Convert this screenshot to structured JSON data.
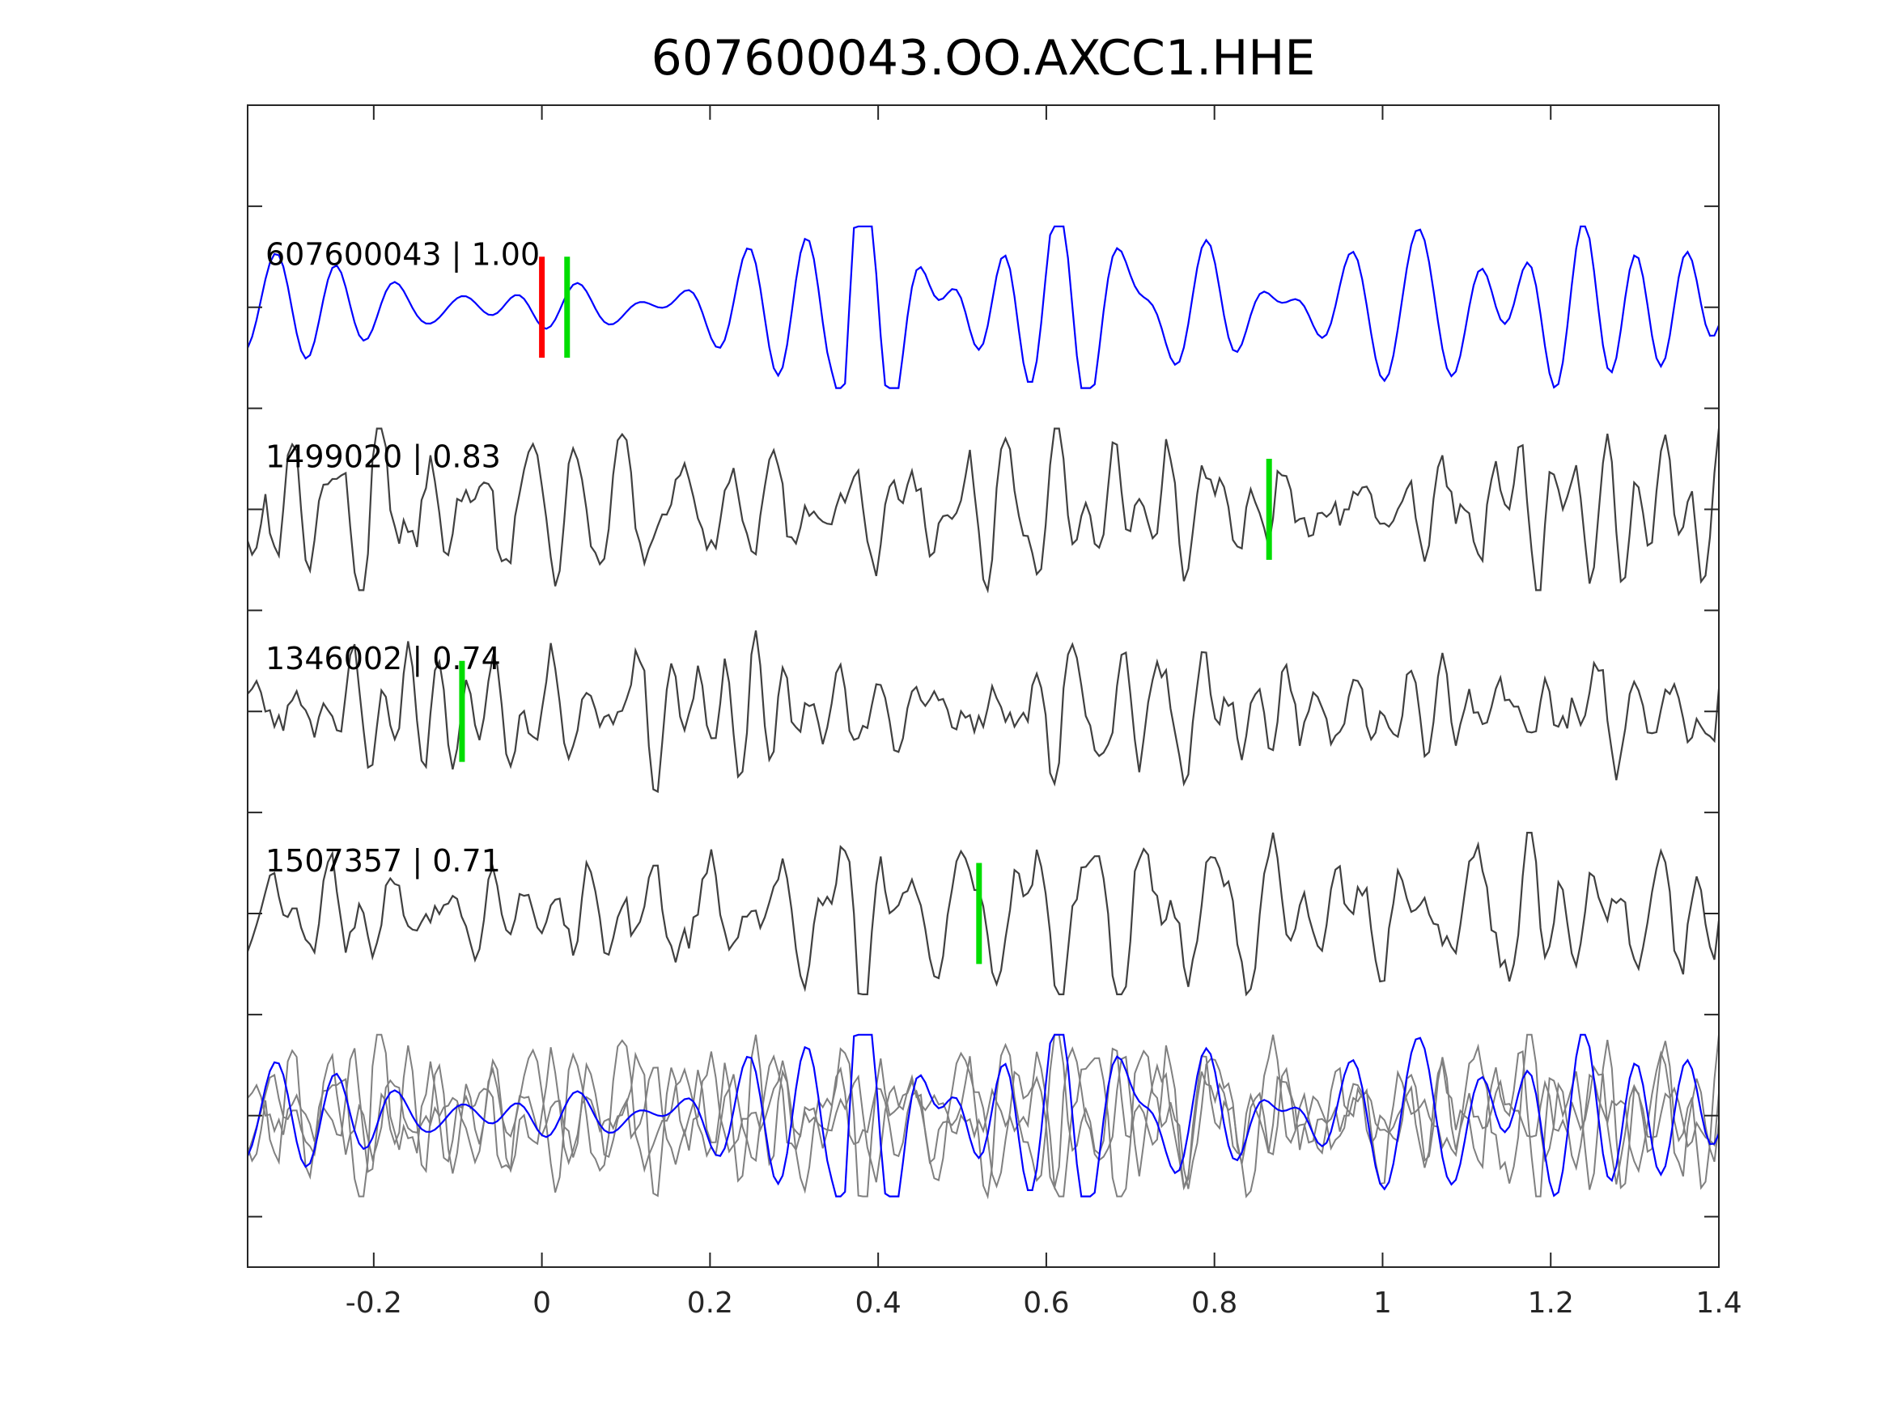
{
  "chart_data": {
    "type": "line",
    "title": "607600043.OO.AXCC1.HHE",
    "xlabel": "",
    "ylabel": "",
    "xlim": [
      -0.35,
      1.4
    ],
    "ylim": [
      -0.5,
      11
    ],
    "xticks": [
      -0.2,
      0,
      0.2,
      0.4,
      0.6,
      0.8,
      1,
      1.2,
      1.4
    ],
    "xtick_labels": [
      "-0.2",
      "0",
      "0.2",
      "0.4",
      "0.6",
      "0.8",
      "1",
      "1.2",
      "1.4"
    ],
    "yticks": [
      0,
      1,
      2,
      3,
      4,
      5,
      6,
      7,
      8,
      9,
      10,
      11
    ],
    "grid": false,
    "colors": {
      "template": "#0000ff",
      "match": "#404040",
      "overlay": "#808080",
      "pick_p": "#ff0000",
      "pick_s": "#00dd00"
    },
    "traces": [
      {
        "label": "607600043 | 1.00",
        "offset": 9,
        "color": "#0000ff",
        "picks": [
          {
            "t": 0.0,
            "color": "#ff0000"
          },
          {
            "t": 0.03,
            "color": "#00dd00"
          }
        ]
      },
      {
        "label": "1499020 | 0.83",
        "offset": 7,
        "color": "#404040",
        "picks": [
          {
            "t": 0.865,
            "color": "#00dd00"
          }
        ]
      },
      {
        "label": "1346002 | 0.74",
        "offset": 5,
        "color": "#404040",
        "picks": [
          {
            "t": -0.095,
            "color": "#00dd00"
          }
        ]
      },
      {
        "label": "1507357 | 0.71",
        "offset": 3,
        "color": "#404040",
        "picks": [
          {
            "t": 0.52,
            "color": "#00dd00"
          }
        ]
      }
    ],
    "overlay_offset": 1
  }
}
